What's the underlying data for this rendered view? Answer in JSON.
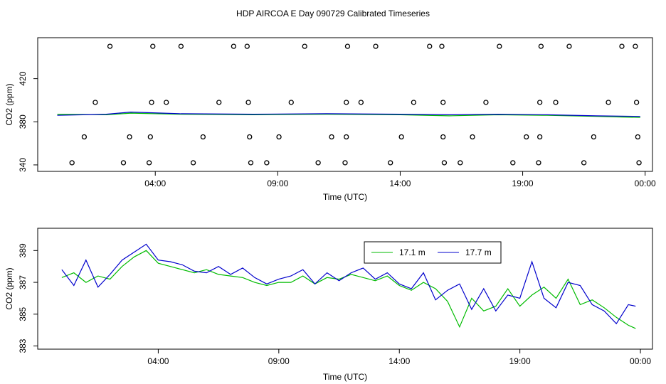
{
  "figure": {
    "title": "HDP AIRCOA E  Day 090729  Calibrated Timeseries"
  },
  "chart_data": [
    {
      "type": "scatter",
      "name": "calibration-panel",
      "xlabel": "Time (UTC)",
      "ylabel": "CO2 (ppm)",
      "xlim": [
        -0.8,
        24.3
      ],
      "ylim": [
        334,
        458
      ],
      "x_ticks": [
        {
          "value": 4,
          "label": "04:00"
        },
        {
          "value": 9,
          "label": "09:00"
        },
        {
          "value": 14,
          "label": "14:00"
        },
        {
          "value": 19,
          "label": "19:00"
        },
        {
          "value": 24,
          "label": "00:00"
        }
      ],
      "y_ticks": [
        {
          "value": 340,
          "label": "340"
        },
        {
          "value": 380,
          "label": "380"
        },
        {
          "value": 420,
          "label": "420"
        }
      ],
      "calibration_points": [
        {
          "x": 2.15,
          "y": 450
        },
        {
          "x": 3.9,
          "y": 450
        },
        {
          "x": 5.05,
          "y": 450
        },
        {
          "x": 7.2,
          "y": 450
        },
        {
          "x": 7.75,
          "y": 450
        },
        {
          "x": 10.1,
          "y": 450
        },
        {
          "x": 11.85,
          "y": 450
        },
        {
          "x": 13.0,
          "y": 450
        },
        {
          "x": 15.2,
          "y": 450
        },
        {
          "x": 15.7,
          "y": 450
        },
        {
          "x": 18.05,
          "y": 450
        },
        {
          "x": 19.75,
          "y": 450
        },
        {
          "x": 20.9,
          "y": 450
        },
        {
          "x": 23.05,
          "y": 450
        },
        {
          "x": 23.6,
          "y": 450
        },
        {
          "x": 1.55,
          "y": 398
        },
        {
          "x": 3.85,
          "y": 398
        },
        {
          "x": 4.45,
          "y": 398
        },
        {
          "x": 6.6,
          "y": 398
        },
        {
          "x": 7.8,
          "y": 398
        },
        {
          "x": 9.55,
          "y": 398
        },
        {
          "x": 11.8,
          "y": 398
        },
        {
          "x": 12.4,
          "y": 398
        },
        {
          "x": 14.55,
          "y": 398
        },
        {
          "x": 15.75,
          "y": 398
        },
        {
          "x": 17.5,
          "y": 398
        },
        {
          "x": 19.7,
          "y": 398
        },
        {
          "x": 20.35,
          "y": 398
        },
        {
          "x": 22.5,
          "y": 398
        },
        {
          "x": 23.65,
          "y": 398
        },
        {
          "x": 1.1,
          "y": 366
        },
        {
          "x": 2.95,
          "y": 366
        },
        {
          "x": 3.8,
          "y": 366
        },
        {
          "x": 5.95,
          "y": 366
        },
        {
          "x": 7.85,
          "y": 366
        },
        {
          "x": 9.05,
          "y": 366
        },
        {
          "x": 11.2,
          "y": 366
        },
        {
          "x": 11.8,
          "y": 366
        },
        {
          "x": 14.05,
          "y": 366
        },
        {
          "x": 15.75,
          "y": 366
        },
        {
          "x": 16.95,
          "y": 366
        },
        {
          "x": 19.15,
          "y": 366
        },
        {
          "x": 19.7,
          "y": 366
        },
        {
          "x": 21.9,
          "y": 366
        },
        {
          "x": 23.7,
          "y": 366
        },
        {
          "x": 0.6,
          "y": 342
        },
        {
          "x": 2.7,
          "y": 342
        },
        {
          "x": 3.75,
          "y": 342
        },
        {
          "x": 5.55,
          "y": 342
        },
        {
          "x": 7.9,
          "y": 342
        },
        {
          "x": 8.55,
          "y": 342
        },
        {
          "x": 10.65,
          "y": 342
        },
        {
          "x": 11.75,
          "y": 342
        },
        {
          "x": 13.6,
          "y": 342
        },
        {
          "x": 15.8,
          "y": 342
        },
        {
          "x": 16.45,
          "y": 342
        },
        {
          "x": 18.6,
          "y": 342
        },
        {
          "x": 19.65,
          "y": 342
        },
        {
          "x": 21.5,
          "y": 342
        },
        {
          "x": 23.75,
          "y": 342
        }
      ],
      "series": [
        {
          "name": "17.1 m",
          "color": "#00bb00",
          "x": [
            0.0,
            2.0,
            3.0,
            5.0,
            8.0,
            11.0,
            14.0,
            16.0,
            18.0,
            20.0,
            22.0,
            23.8
          ],
          "y": [
            387,
            386.5,
            388,
            387,
            386.5,
            387,
            386.5,
            385.5,
            386.5,
            386,
            385,
            384
          ]
        },
        {
          "name": "17.7 m",
          "color": "#0000cc",
          "x": [
            0.0,
            2.0,
            3.0,
            5.0,
            8.0,
            11.0,
            14.0,
            16.0,
            18.0,
            20.0,
            22.0,
            23.8
          ],
          "y": [
            386,
            387,
            389,
            387.5,
            387,
            387.5,
            387,
            386.5,
            387,
            386.5,
            385.5,
            385
          ]
        }
      ]
    },
    {
      "type": "line",
      "name": "timeseries-panel",
      "xlabel": "Time (UTC)",
      "ylabel": "CO2 (ppm)",
      "xlim": [
        -1.0,
        24.5
      ],
      "ylim": [
        382.8,
        390.4
      ],
      "legend": {
        "position": "top-right"
      },
      "x_ticks": [
        {
          "value": 4,
          "label": "04:00"
        },
        {
          "value": 9,
          "label": "09:00"
        },
        {
          "value": 14,
          "label": "14:00"
        },
        {
          "value": 19,
          "label": "19:00"
        },
        {
          "value": 24,
          "label": "00:00"
        }
      ],
      "y_ticks": [
        {
          "value": 383,
          "label": "383"
        },
        {
          "value": 385,
          "label": "385"
        },
        {
          "value": 387,
          "label": "387"
        },
        {
          "value": 389,
          "label": "389"
        }
      ],
      "series": [
        {
          "name": "17.1 m",
          "color": "#00bb00",
          "x": [
            0.0,
            0.5,
            1.0,
            1.5,
            2.0,
            2.5,
            3.0,
            3.5,
            4.0,
            4.5,
            5.0,
            5.5,
            6.0,
            6.5,
            7.0,
            7.5,
            8.0,
            8.5,
            9.0,
            9.5,
            10.0,
            10.5,
            11.0,
            11.5,
            12.0,
            12.5,
            13.0,
            13.5,
            14.0,
            14.5,
            15.0,
            15.5,
            16.0,
            16.5,
            17.0,
            17.5,
            18.0,
            18.5,
            19.0,
            19.5,
            20.0,
            20.5,
            21.0,
            21.5,
            22.0,
            22.5,
            23.0,
            23.5,
            23.8
          ],
          "y": [
            387.3,
            387.6,
            387.0,
            387.4,
            387.2,
            388.0,
            388.6,
            389.0,
            388.2,
            388.0,
            387.8,
            387.6,
            387.8,
            387.5,
            387.4,
            387.3,
            387.0,
            386.8,
            387.0,
            387.0,
            387.4,
            386.9,
            387.3,
            387.2,
            387.5,
            387.3,
            387.1,
            387.4,
            386.8,
            386.5,
            387.0,
            386.6,
            385.8,
            384.2,
            386.0,
            385.2,
            385.5,
            386.6,
            385.5,
            386.2,
            386.7,
            386.0,
            387.2,
            385.6,
            385.9,
            385.4,
            384.8,
            384.3,
            384.1
          ]
        },
        {
          "name": "17.7 m",
          "color": "#0000cc",
          "x": [
            0.0,
            0.5,
            1.0,
            1.5,
            2.0,
            2.5,
            3.0,
            3.5,
            4.0,
            4.5,
            5.0,
            5.5,
            6.0,
            6.5,
            7.0,
            7.5,
            8.0,
            8.5,
            9.0,
            9.5,
            10.0,
            10.5,
            11.0,
            11.5,
            12.0,
            12.5,
            13.0,
            13.5,
            14.0,
            14.5,
            15.0,
            15.5,
            16.0,
            16.5,
            17.0,
            17.5,
            18.0,
            18.5,
            19.0,
            19.5,
            20.0,
            20.5,
            21.0,
            21.5,
            22.0,
            22.5,
            23.0,
            23.5,
            23.8
          ],
          "y": [
            387.8,
            386.8,
            388.4,
            386.7,
            387.5,
            388.4,
            388.9,
            389.4,
            388.4,
            388.3,
            388.1,
            387.7,
            387.6,
            388.0,
            387.5,
            387.9,
            387.3,
            386.9,
            387.2,
            387.4,
            387.8,
            386.9,
            387.6,
            387.1,
            387.6,
            387.9,
            387.2,
            387.6,
            386.9,
            386.6,
            387.6,
            385.9,
            386.5,
            386.9,
            385.3,
            386.6,
            385.2,
            386.2,
            386.0,
            388.3,
            386.0,
            385.4,
            387.0,
            386.8,
            385.6,
            385.2,
            384.4,
            385.6,
            385.5
          ]
        }
      ]
    }
  ]
}
